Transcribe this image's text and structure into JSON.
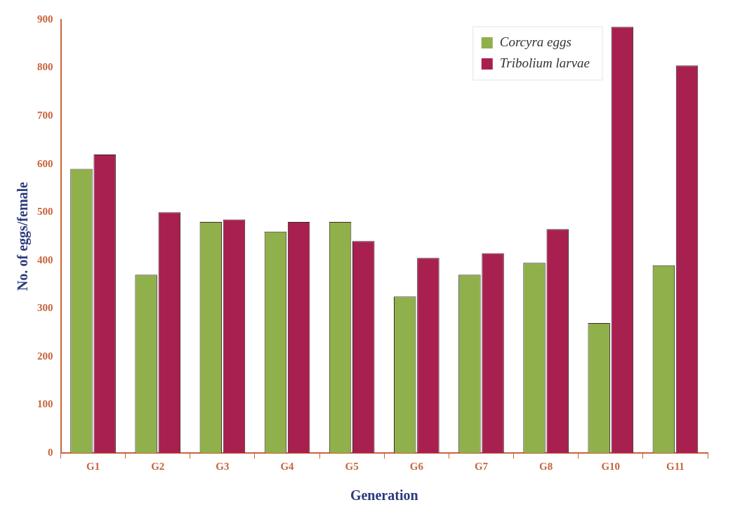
{
  "chart_data": {
    "type": "bar",
    "xlabel": "Generation",
    "ylabel": "No. of eggs/female",
    "categories": [
      "G1",
      "G2",
      "G3",
      "G4",
      "G5",
      "G6",
      "G7",
      "G8",
      "G10",
      "G11"
    ],
    "series": [
      {
        "name": "Corcyra eggs",
        "color": "#8fb04a",
        "values": [
          590,
          370,
          480,
          460,
          480,
          325,
          370,
          395,
          270,
          390
        ]
      },
      {
        "name": "Tribolium larvae",
        "color": "#a8204f",
        "values": [
          620,
          500,
          485,
          480,
          440,
          405,
          415,
          465,
          885,
          805
        ]
      }
    ],
    "ylim": [
      0,
      900
    ],
    "yticks": [
      0,
      100,
      200,
      300,
      400,
      500,
      600,
      700,
      800,
      900
    ],
    "grid": false,
    "legend": "top right"
  }
}
